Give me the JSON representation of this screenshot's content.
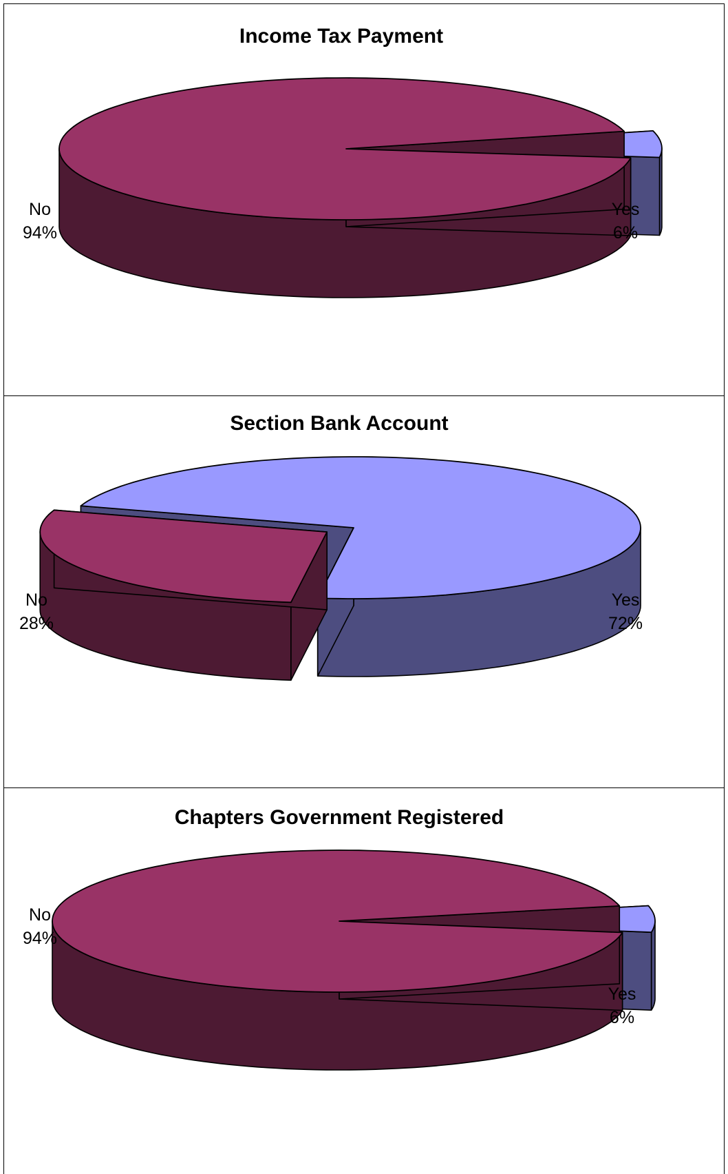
{
  "colors": {
    "no_top": "#993366",
    "no_side": "#4d1a33",
    "yes_top": "#9999ff",
    "yes_side": "#4d4d80",
    "outline": "#000000",
    "border": "#000000"
  },
  "chart_data": [
    {
      "type": "pie",
      "title": "Income Tax Payment",
      "slices": [
        {
          "label": "No",
          "value": 94,
          "value_text": "94%"
        },
        {
          "label": "Yes",
          "value": 6,
          "value_text": "6%"
        }
      ],
      "exploded": "Yes",
      "style": "3d"
    },
    {
      "type": "pie",
      "title": "Section Bank Account",
      "slices": [
        {
          "label": "No",
          "value": 28,
          "value_text": "28%"
        },
        {
          "label": "Yes",
          "value": 72,
          "value_text": "72%"
        }
      ],
      "exploded": "No",
      "style": "3d"
    },
    {
      "type": "pie",
      "title": "Chapters Government Registered",
      "slices": [
        {
          "label": "No",
          "value": 94,
          "value_text": "94%"
        },
        {
          "label": "Yes",
          "value": 6,
          "value_text": "6%"
        }
      ],
      "exploded": "Yes",
      "style": "3d"
    }
  ]
}
